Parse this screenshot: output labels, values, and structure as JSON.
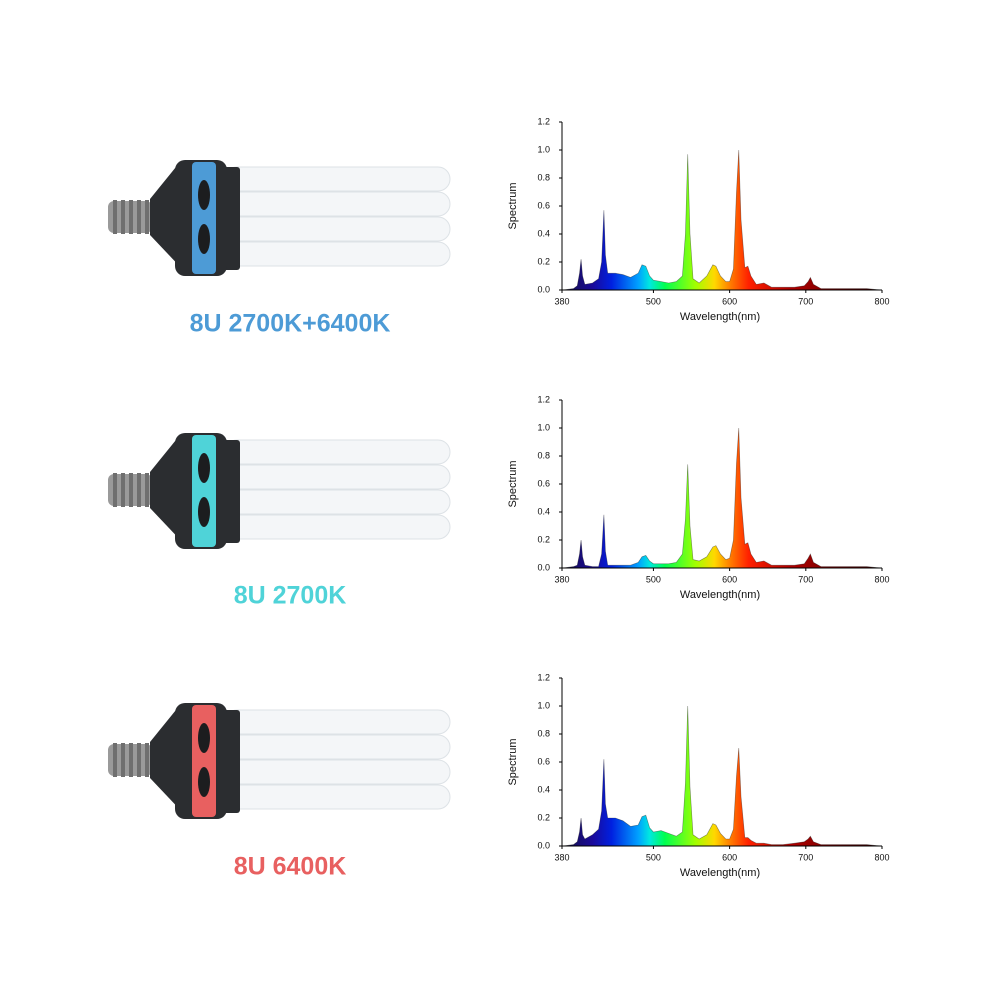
{
  "chart_data": [
    {
      "type": "area",
      "title": "8U 2700K+6400K",
      "color": "#4d9bd6",
      "xlabel": "Wavelength(nm)",
      "ylabel": "Spectrum",
      "xlim": [
        380,
        800
      ],
      "xticks": [
        380,
        500,
        600,
        700,
        800
      ],
      "ylim": [
        0,
        1.2
      ],
      "yticks": [
        {
          "value": 0,
          "label": "0.0"
        },
        0.2,
        0.4,
        0.6,
        0.8,
        {
          "value": 1,
          "label": "1.0"
        },
        1.2
      ],
      "x": [
        380,
        395,
        400,
        403,
        405,
        407,
        410,
        420,
        428,
        432,
        435,
        437,
        440,
        450,
        460,
        470,
        480,
        485,
        490,
        495,
        500,
        510,
        520,
        530,
        538,
        542,
        545,
        548,
        552,
        560,
        570,
        578,
        582,
        588,
        595,
        600,
        605,
        609,
        612,
        615,
        620,
        624,
        628,
        635,
        645,
        655,
        670,
        685,
        698,
        703,
        706,
        710,
        720,
        740,
        760,
        780,
        800
      ],
      "values": [
        0,
        0.01,
        0.03,
        0.12,
        0.22,
        0.1,
        0.04,
        0.05,
        0.08,
        0.2,
        0.57,
        0.25,
        0.12,
        0.12,
        0.11,
        0.09,
        0.12,
        0.18,
        0.17,
        0.1,
        0.07,
        0.06,
        0.05,
        0.06,
        0.1,
        0.4,
        0.97,
        0.4,
        0.08,
        0.05,
        0.1,
        0.18,
        0.17,
        0.1,
        0.06,
        0.06,
        0.15,
        0.7,
        1.0,
        0.5,
        0.16,
        0.17,
        0.1,
        0.04,
        0.05,
        0.02,
        0.02,
        0.02,
        0.03,
        0.06,
        0.09,
        0.04,
        0.01,
        0.01,
        0.01,
        0.01,
        0
      ]
    },
    {
      "type": "area",
      "title": "8U 2700K",
      "color": "#4fd3d8",
      "xlabel": "Wavelength(nm)",
      "ylabel": "Spectrum",
      "xlim": [
        380,
        800
      ],
      "xticks": [
        380,
        500,
        600,
        700,
        800
      ],
      "ylim": [
        0,
        1.2
      ],
      "yticks": [
        {
          "value": 0,
          "label": "0.0"
        },
        0.2,
        0.4,
        0.6,
        0.8,
        {
          "value": 1,
          "label": "1.0"
        },
        1.2
      ],
      "x": [
        380,
        395,
        400,
        403,
        405,
        407,
        410,
        420,
        428,
        432,
        435,
        437,
        440,
        450,
        460,
        470,
        480,
        485,
        490,
        495,
        500,
        510,
        520,
        530,
        538,
        542,
        545,
        548,
        552,
        560,
        570,
        578,
        582,
        588,
        595,
        600,
        605,
        609,
        612,
        615,
        620,
        624,
        628,
        635,
        645,
        655,
        670,
        685,
        698,
        703,
        706,
        710,
        720,
        740,
        760,
        780,
        800
      ],
      "values": [
        0,
        0.01,
        0.02,
        0.1,
        0.2,
        0.08,
        0.02,
        0.01,
        0.01,
        0.1,
        0.38,
        0.12,
        0.02,
        0.02,
        0.02,
        0.02,
        0.04,
        0.08,
        0.09,
        0.05,
        0.03,
        0.03,
        0.03,
        0.04,
        0.1,
        0.35,
        0.74,
        0.3,
        0.06,
        0.05,
        0.08,
        0.15,
        0.16,
        0.1,
        0.06,
        0.07,
        0.2,
        0.75,
        1.0,
        0.5,
        0.17,
        0.18,
        0.1,
        0.04,
        0.05,
        0.02,
        0.02,
        0.02,
        0.03,
        0.07,
        0.1,
        0.04,
        0.01,
        0.01,
        0.01,
        0.01,
        0
      ]
    },
    {
      "type": "area",
      "title": "8U 6400K",
      "color": "#e86060",
      "xlabel": "Wavelength(nm)",
      "ylabel": "Spectrum",
      "xlim": [
        380,
        800
      ],
      "xticks": [
        380,
        500,
        600,
        700,
        800
      ],
      "ylim": [
        0,
        1.2
      ],
      "yticks": [
        {
          "value": 0,
          "label": "0.0"
        },
        0.2,
        0.4,
        0.6,
        0.8,
        {
          "value": 1,
          "label": "1.0"
        },
        1.2
      ],
      "x": [
        380,
        395,
        400,
        403,
        405,
        407,
        410,
        420,
        428,
        432,
        435,
        437,
        440,
        450,
        460,
        470,
        480,
        485,
        490,
        495,
        500,
        510,
        520,
        530,
        538,
        542,
        545,
        548,
        552,
        560,
        570,
        578,
        582,
        588,
        595,
        600,
        605,
        609,
        612,
        615,
        620,
        624,
        628,
        635,
        645,
        655,
        670,
        685,
        698,
        703,
        706,
        710,
        720,
        740,
        760,
        780,
        800
      ],
      "values": [
        0,
        0.01,
        0.03,
        0.1,
        0.2,
        0.08,
        0.05,
        0.08,
        0.12,
        0.25,
        0.62,
        0.3,
        0.2,
        0.2,
        0.18,
        0.14,
        0.15,
        0.21,
        0.22,
        0.13,
        0.1,
        0.11,
        0.09,
        0.07,
        0.1,
        0.45,
        1.0,
        0.42,
        0.08,
        0.05,
        0.08,
        0.16,
        0.15,
        0.09,
        0.05,
        0.05,
        0.12,
        0.5,
        0.7,
        0.35,
        0.06,
        0.06,
        0.04,
        0.02,
        0.02,
        0.01,
        0.01,
        0.02,
        0.03,
        0.05,
        0.07,
        0.03,
        0.01,
        0.01,
        0.01,
        0.01,
        0
      ]
    }
  ]
}
